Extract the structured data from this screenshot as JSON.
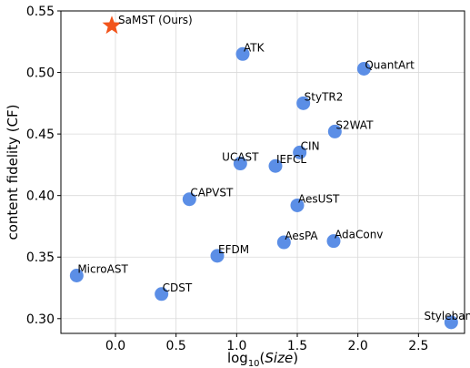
{
  "chart_data": {
    "type": "scatter",
    "title": "",
    "xlabel_prefix": "log",
    "xlabel_sub": "10",
    "xlabel_var": "Size",
    "ylabel": "content fidelity (CF)",
    "xlim": [
      -0.45,
      2.88
    ],
    "ylim": [
      0.288,
      0.55
    ],
    "x_ticks": [
      0.0,
      0.5,
      1.0,
      1.5,
      2.0,
      2.5
    ],
    "x_tick_labels": [
      "0.0",
      "0.5",
      "1.0",
      "1.5",
      "2.0",
      "2.5"
    ],
    "y_ticks": [
      0.3,
      0.35,
      0.4,
      0.45,
      0.5,
      0.55
    ],
    "y_tick_labels": [
      "0.30",
      "0.35",
      "0.40",
      "0.45",
      "0.50",
      "0.55"
    ],
    "grid": true,
    "colors": {
      "point": "#5b8ee6",
      "highlight": "#f2541b"
    },
    "highlight": {
      "name": "SaMST (Ours)",
      "x": -0.03,
      "y": 0.538,
      "marker": "star"
    },
    "points": [
      {
        "name": "ATK",
        "x": 1.05,
        "y": 0.515,
        "label_pos": "upper-right"
      },
      {
        "name": "QuantArt",
        "x": 2.05,
        "y": 0.503,
        "label_pos": "right"
      },
      {
        "name": "StyTR2",
        "x": 1.55,
        "y": 0.475,
        "label_pos": "upper-right"
      },
      {
        "name": "S2WAT",
        "x": 1.81,
        "y": 0.452,
        "label_pos": "upper-right"
      },
      {
        "name": "CIN",
        "x": 1.52,
        "y": 0.435,
        "label_pos": "upper-right"
      },
      {
        "name": "UCAST",
        "x": 1.03,
        "y": 0.426,
        "label_pos": "upper-center"
      },
      {
        "name": "IEFCL",
        "x": 1.32,
        "y": 0.424,
        "label_pos": "upper-right"
      },
      {
        "name": "CAPVST",
        "x": 0.61,
        "y": 0.397,
        "label_pos": "upper-right"
      },
      {
        "name": "AesUST",
        "x": 1.5,
        "y": 0.392,
        "label_pos": "upper-right"
      },
      {
        "name": "AesPA",
        "x": 1.39,
        "y": 0.362,
        "label_pos": "upper-right"
      },
      {
        "name": "AdaConv",
        "x": 1.8,
        "y": 0.363,
        "label_pos": "upper-right"
      },
      {
        "name": "EFDM",
        "x": 0.84,
        "y": 0.351,
        "label_pos": "upper-right"
      },
      {
        "name": "MicroAST",
        "x": -0.32,
        "y": 0.335,
        "label_pos": "upper-right"
      },
      {
        "name": "CDST",
        "x": 0.38,
        "y": 0.32,
        "label_pos": "upper-right"
      },
      {
        "name": "Stylebank",
        "x": 2.77,
        "y": 0.297,
        "label_pos": "upper-center"
      }
    ]
  }
}
